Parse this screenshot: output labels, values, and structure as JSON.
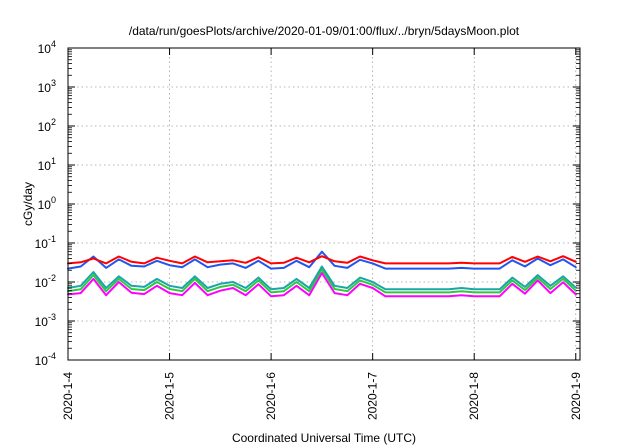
{
  "chart_data": {
    "type": "line",
    "title": "/data/run/goesPlots/archive/2020-01-09/01:00/flux/../bryn/5daysMoon.plot",
    "xlabel": "Coordinated Universal Time (UTC)",
    "ylabel": "cGy/day",
    "x_tick_labels": [
      "2020-1-4",
      "2020-1-5",
      "2020-1-6",
      "2020-1-7",
      "2020-1-8",
      "2020-1-9"
    ],
    "xlim": [
      "2020-01-04 00:00",
      "2020-01-09 01:00"
    ],
    "y_scale": "log",
    "ylim": [
      0.0001,
      10000
    ],
    "y_tick_labels": [
      {
        "base": "10",
        "exp": "-4"
      },
      {
        "base": "10",
        "exp": "-3"
      },
      {
        "base": "10",
        "exp": "-2"
      },
      {
        "base": "10",
        "exp": "-1"
      },
      {
        "base": "10",
        "exp": "0"
      },
      {
        "base": "10",
        "exp": "1"
      },
      {
        "base": "10",
        "exp": "2"
      },
      {
        "base": "10",
        "exp": "3"
      },
      {
        "base": "10",
        "exp": "4"
      }
    ],
    "grid": true,
    "x": [
      "2020-01-04 00:00",
      "2020-01-04 03:00",
      "2020-01-04 06:00",
      "2020-01-04 09:00",
      "2020-01-04 12:00",
      "2020-01-04 15:00",
      "2020-01-04 18:00",
      "2020-01-04 21:00",
      "2020-01-05 00:00",
      "2020-01-05 03:00",
      "2020-01-05 06:00",
      "2020-01-05 09:00",
      "2020-01-05 12:00",
      "2020-01-05 15:00",
      "2020-01-05 18:00",
      "2020-01-05 21:00",
      "2020-01-06 00:00",
      "2020-01-06 03:00",
      "2020-01-06 06:00",
      "2020-01-06 09:00",
      "2020-01-06 12:00",
      "2020-01-06 15:00",
      "2020-01-06 18:00",
      "2020-01-06 21:00",
      "2020-01-07 00:00",
      "2020-01-07 03:00",
      "2020-01-07 06:00",
      "2020-01-07 09:00",
      "2020-01-07 12:00",
      "2020-01-07 15:00",
      "2020-01-07 18:00",
      "2020-01-07 21:00",
      "2020-01-08 00:00",
      "2020-01-08 03:00",
      "2020-01-08 06:00",
      "2020-01-08 09:00",
      "2020-01-08 12:00",
      "2020-01-08 15:00",
      "2020-01-08 18:00",
      "2020-01-08 21:00",
      "2020-01-09 00:00"
    ],
    "series": [
      {
        "color": "#ff0000",
        "values": [
          0.03,
          0.032,
          0.04,
          0.03,
          0.045,
          0.033,
          0.03,
          0.042,
          0.035,
          0.03,
          0.045,
          0.032,
          0.034,
          0.036,
          0.031,
          0.043,
          0.03,
          0.031,
          0.042,
          0.032,
          0.046,
          0.034,
          0.031,
          0.045,
          0.036,
          0.03,
          0.03,
          0.03,
          0.03,
          0.03,
          0.03,
          0.031,
          0.03,
          0.03,
          0.03,
          0.044,
          0.033,
          0.045,
          0.034,
          0.046,
          0.033
        ]
      },
      {
        "color": "#2255ee",
        "values": [
          0.022,
          0.025,
          0.045,
          0.023,
          0.038,
          0.026,
          0.025,
          0.035,
          0.027,
          0.024,
          0.038,
          0.024,
          0.028,
          0.03,
          0.023,
          0.035,
          0.022,
          0.023,
          0.035,
          0.024,
          0.06,
          0.026,
          0.023,
          0.037,
          0.03,
          0.022,
          0.022,
          0.022,
          0.022,
          0.022,
          0.022,
          0.023,
          0.022,
          0.022,
          0.022,
          0.036,
          0.025,
          0.04,
          0.027,
          0.038,
          0.024
        ]
      },
      {
        "color": "#1aa6a6",
        "values": [
          0.007,
          0.008,
          0.018,
          0.007,
          0.014,
          0.008,
          0.0075,
          0.012,
          0.008,
          0.007,
          0.014,
          0.007,
          0.009,
          0.01,
          0.007,
          0.013,
          0.0065,
          0.007,
          0.012,
          0.007,
          0.025,
          0.008,
          0.007,
          0.013,
          0.01,
          0.0065,
          0.0065,
          0.0065,
          0.0065,
          0.0065,
          0.0065,
          0.007,
          0.0065,
          0.0065,
          0.0065,
          0.013,
          0.0075,
          0.015,
          0.008,
          0.014,
          0.0072
        ]
      },
      {
        "color": "#2fc840",
        "values": [
          0.0058,
          0.0065,
          0.015,
          0.0058,
          0.012,
          0.0066,
          0.0062,
          0.01,
          0.0066,
          0.0058,
          0.012,
          0.0058,
          0.0075,
          0.0085,
          0.0058,
          0.011,
          0.0054,
          0.0058,
          0.01,
          0.0058,
          0.021,
          0.0066,
          0.0058,
          0.011,
          0.0085,
          0.0054,
          0.0054,
          0.0054,
          0.0054,
          0.0054,
          0.0054,
          0.0058,
          0.0054,
          0.0054,
          0.0054,
          0.011,
          0.0062,
          0.013,
          0.0066,
          0.012,
          0.006
        ]
      },
      {
        "color": "#ff00ff",
        "values": [
          0.0048,
          0.0052,
          0.012,
          0.0046,
          0.01,
          0.0053,
          0.0049,
          0.008,
          0.0052,
          0.0046,
          0.0095,
          0.0046,
          0.006,
          0.007,
          0.0046,
          0.0088,
          0.0043,
          0.0046,
          0.008,
          0.0046,
          0.017,
          0.0052,
          0.0046,
          0.009,
          0.007,
          0.0043,
          0.0043,
          0.0043,
          0.0043,
          0.0043,
          0.0043,
          0.0046,
          0.0043,
          0.0043,
          0.0043,
          0.009,
          0.005,
          0.011,
          0.0052,
          0.0098,
          0.0048
        ]
      }
    ]
  }
}
